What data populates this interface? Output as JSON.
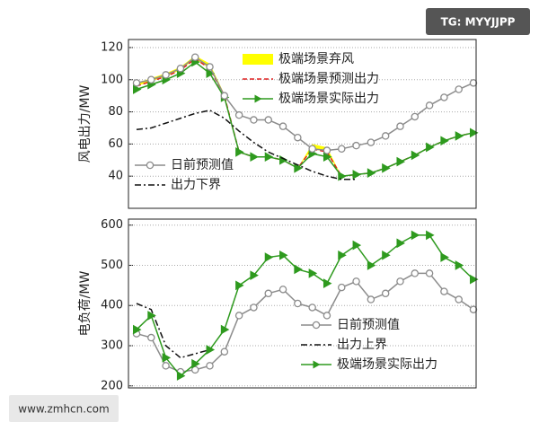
{
  "chart_data": [
    {
      "type": "line",
      "categories": [
        null,
        null,
        null,
        null,
        null,
        null,
        null,
        null,
        null,
        null,
        null,
        null,
        null,
        null,
        null,
        null,
        null,
        null,
        null,
        null,
        null,
        null,
        null,
        null
      ],
      "ylabel": "风电出力/MW",
      "ylim": [
        20,
        125
      ],
      "yticks": [
        40,
        60,
        80,
        100,
        120
      ],
      "grid": true,
      "series": [
        {
          "name": "极端场景弃风",
          "type": "area",
          "color": "#ffff00",
          "legend": "upper center",
          "values": [
            2,
            2,
            2,
            2,
            2,
            3,
            1,
            0,
            0,
            0,
            0,
            0,
            3,
            3,
            0,
            0,
            0,
            0,
            0,
            0,
            0,
            0,
            0,
            0
          ]
        },
        {
          "name": "极端场景预测出力",
          "color": "#e02020",
          "dash": "dash",
          "legend": "upper center",
          "values": [
            96,
            99,
            102,
            106,
            113,
            107,
            90,
            55,
            52,
            52,
            50,
            45,
            57,
            55,
            40,
            41,
            42,
            45,
            49,
            53,
            58,
            62,
            65,
            67
          ]
        },
        {
          "name": "极端场景实际出力",
          "color": "#2e9a1e",
          "marker": "triangle",
          "legend": "upper center",
          "values": [
            94,
            97,
            100,
            104,
            111,
            104,
            89,
            55,
            52,
            52,
            50,
            45,
            54,
            52,
            40,
            41,
            42,
            45,
            49,
            53,
            58,
            62,
            65,
            67
          ]
        },
        {
          "name": "日前预测值",
          "color": "#8c8c8c",
          "marker": "circle",
          "legend": "lower left",
          "values": [
            98,
            100,
            103,
            107,
            114,
            108,
            90,
            78,
            75,
            75,
            71,
            64,
            57,
            56,
            57,
            59,
            61,
            65,
            71,
            77,
            84,
            89,
            94,
            98
          ]
        },
        {
          "name": "出力下界",
          "color": "#111111",
          "dash": "dashdot",
          "legend": "lower left",
          "values": [
            69,
            70,
            73,
            76,
            79,
            81,
            76,
            68,
            61,
            55,
            51,
            47,
            43,
            40,
            38,
            38,
            null,
            null,
            null,
            null,
            null,
            null,
            null,
            null
          ]
        }
      ]
    },
    {
      "type": "line",
      "categories": [
        null,
        null,
        null,
        null,
        null,
        null,
        null,
        null,
        null,
        null,
        null,
        null,
        null,
        null,
        null,
        null,
        null,
        null,
        null,
        null,
        null,
        null,
        null,
        null
      ],
      "ylabel": "电负荷/MW",
      "ylim": [
        195,
        615
      ],
      "yticks": [
        200,
        300,
        400,
        500,
        600
      ],
      "grid": true,
      "series": [
        {
          "name": "日前预测值",
          "color": "#8c8c8c",
          "marker": "circle",
          "legend": "lower right",
          "values": [
            330,
            320,
            250,
            235,
            240,
            250,
            285,
            375,
            395,
            430,
            440,
            405,
            395,
            375,
            445,
            460,
            415,
            430,
            460,
            480,
            480,
            435,
            415,
            390
          ]
        },
        {
          "name": "出力上界",
          "color": "#111111",
          "dash": "dashdot",
          "legend": "lower right",
          "values": [
            405,
            390,
            300,
            270,
            280,
            290,
            null,
            null,
            null,
            null,
            null,
            null,
            null,
            null,
            null,
            null,
            null,
            null,
            null,
            null,
            null,
            null,
            null,
            null
          ]
        },
        {
          "name": "极端场景实际出力",
          "color": "#2e9a1e",
          "marker": "triangle",
          "legend": "lower right",
          "values": [
            340,
            375,
            270,
            225,
            255,
            290,
            340,
            450,
            475,
            520,
            525,
            490,
            480,
            455,
            525,
            550,
            500,
            525,
            555,
            575,
            575,
            520,
            500,
            465
          ]
        }
      ]
    }
  ],
  "watermarks": [
    "TG: MYYJJPP",
    "www.zmhcn.com"
  ]
}
